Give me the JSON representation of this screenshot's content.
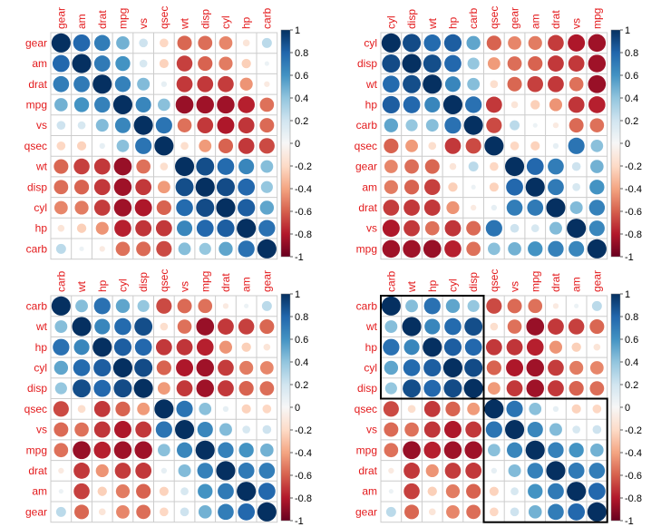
{
  "chart_data": [
    {
      "type": "heatmap",
      "glyph": "circle",
      "variables": [
        "gear",
        "am",
        "drat",
        "mpg",
        "vs",
        "qsec",
        "wt",
        "disp",
        "cyl",
        "hp",
        "carb"
      ],
      "colorbar_ticks": [
        "-1",
        "-0.8",
        "-0.6",
        "-0.4",
        "-0.2",
        "0",
        "0.2",
        "0.4",
        "0.6",
        "0.8",
        "1"
      ],
      "range": [
        -1,
        1
      ],
      "rectangles": []
    },
    {
      "type": "heatmap",
      "glyph": "circle",
      "variables": [
        "cyl",
        "disp",
        "wt",
        "hp",
        "carb",
        "qsec",
        "gear",
        "am",
        "drat",
        "vs",
        "mpg"
      ],
      "colorbar_ticks": [
        "-1",
        "-0.8",
        "-0.6",
        "-0.4",
        "-0.2",
        "0",
        "0.2",
        "0.4",
        "0.6",
        "0.8",
        "1"
      ],
      "range": [
        -1,
        1
      ],
      "rectangles": []
    },
    {
      "type": "heatmap",
      "glyph": "circle",
      "variables": [
        "carb",
        "wt",
        "hp",
        "cyl",
        "disp",
        "qsec",
        "vs",
        "mpg",
        "drat",
        "am",
        "gear"
      ],
      "colorbar_ticks": [
        "-1",
        "-0.8",
        "-0.6",
        "-0.4",
        "-0.2",
        "0",
        "0.2",
        "0.4",
        "0.6",
        "0.8",
        "1"
      ],
      "range": [
        -1,
        1
      ],
      "rectangles": []
    },
    {
      "type": "heatmap",
      "glyph": "circle",
      "variables": [
        "carb",
        "wt",
        "hp",
        "cyl",
        "disp",
        "qsec",
        "vs",
        "mpg",
        "drat",
        "am",
        "gear"
      ],
      "colorbar_ticks": [
        "-1",
        "-0.8",
        "-0.6",
        "-0.4",
        "-0.2",
        "0",
        "0.2",
        "0.4",
        "0.6",
        "0.8",
        "1"
      ],
      "range": [
        -1,
        1
      ],
      "rectangles": [
        {
          "from": "carb",
          "to": "disp"
        },
        {
          "from": "qsec",
          "to": "gear"
        }
      ]
    }
  ],
  "correlations": {
    "mpg": {
      "mpg": 1,
      "cyl": -0.85,
      "disp": -0.85,
      "hp": -0.78,
      "drat": 0.68,
      "wt": -0.87,
      "qsec": 0.42,
      "vs": 0.66,
      "am": 0.6,
      "gear": 0.48,
      "carb": -0.55
    },
    "cyl": {
      "mpg": -0.85,
      "cyl": 1,
      "disp": 0.9,
      "hp": 0.83,
      "drat": -0.7,
      "wt": 0.78,
      "qsec": -0.59,
      "vs": -0.81,
      "am": -0.52,
      "gear": -0.49,
      "carb": 0.53
    },
    "disp": {
      "mpg": -0.85,
      "cyl": 0.9,
      "disp": 1,
      "hp": 0.79,
      "drat": -0.71,
      "wt": 0.89,
      "qsec": -0.43,
      "vs": -0.71,
      "am": -0.59,
      "gear": -0.56,
      "carb": 0.39
    },
    "hp": {
      "mpg": -0.78,
      "cyl": 0.83,
      "disp": 0.79,
      "hp": 1,
      "drat": -0.45,
      "wt": 0.66,
      "qsec": -0.71,
      "vs": -0.72,
      "am": -0.24,
      "gear": -0.13,
      "carb": 0.75
    },
    "drat": {
      "mpg": 0.68,
      "cyl": -0.7,
      "disp": -0.71,
      "hp": -0.45,
      "drat": 1,
      "wt": -0.71,
      "qsec": 0.09,
      "vs": 0.44,
      "am": 0.71,
      "gear": 0.7,
      "carb": -0.09
    },
    "wt": {
      "mpg": -0.87,
      "cyl": 0.78,
      "disp": 0.89,
      "hp": 0.66,
      "drat": -0.71,
      "wt": 1,
      "qsec": -0.17,
      "vs": -0.55,
      "am": -0.69,
      "gear": -0.58,
      "carb": 0.43
    },
    "qsec": {
      "mpg": 0.42,
      "cyl": -0.59,
      "disp": -0.43,
      "hp": -0.71,
      "drat": 0.09,
      "wt": -0.17,
      "qsec": 1,
      "vs": 0.74,
      "am": -0.23,
      "gear": -0.21,
      "carb": -0.66
    },
    "vs": {
      "mpg": 0.66,
      "cyl": -0.81,
      "disp": -0.71,
      "hp": -0.72,
      "drat": 0.44,
      "wt": -0.55,
      "qsec": 0.74,
      "vs": 1,
      "am": 0.17,
      "gear": 0.21,
      "carb": -0.57
    },
    "am": {
      "mpg": 0.6,
      "cyl": -0.52,
      "disp": -0.59,
      "hp": -0.24,
      "drat": 0.71,
      "wt": -0.69,
      "qsec": -0.23,
      "vs": 0.17,
      "am": 1,
      "gear": 0.79,
      "carb": 0.06
    },
    "gear": {
      "mpg": 0.48,
      "cyl": -0.49,
      "disp": -0.56,
      "hp": -0.13,
      "drat": 0.7,
      "wt": -0.58,
      "qsec": -0.21,
      "vs": 0.21,
      "am": 0.79,
      "gear": 1,
      "carb": 0.27
    },
    "carb": {
      "mpg": -0.55,
      "cyl": 0.53,
      "disp": 0.39,
      "hp": 0.75,
      "drat": -0.09,
      "wt": 0.43,
      "qsec": -0.66,
      "vs": -0.57,
      "am": 0.06,
      "gear": 0.27,
      "carb": 1
    }
  },
  "colors": {
    "positive_end": "#053061",
    "positive_mid": "#4393c3",
    "neutral": "#f7f7f7",
    "negative_mid": "#d6604d",
    "negative_end": "#67001f",
    "label": "#e31a1c",
    "grid": "#cccccc"
  }
}
